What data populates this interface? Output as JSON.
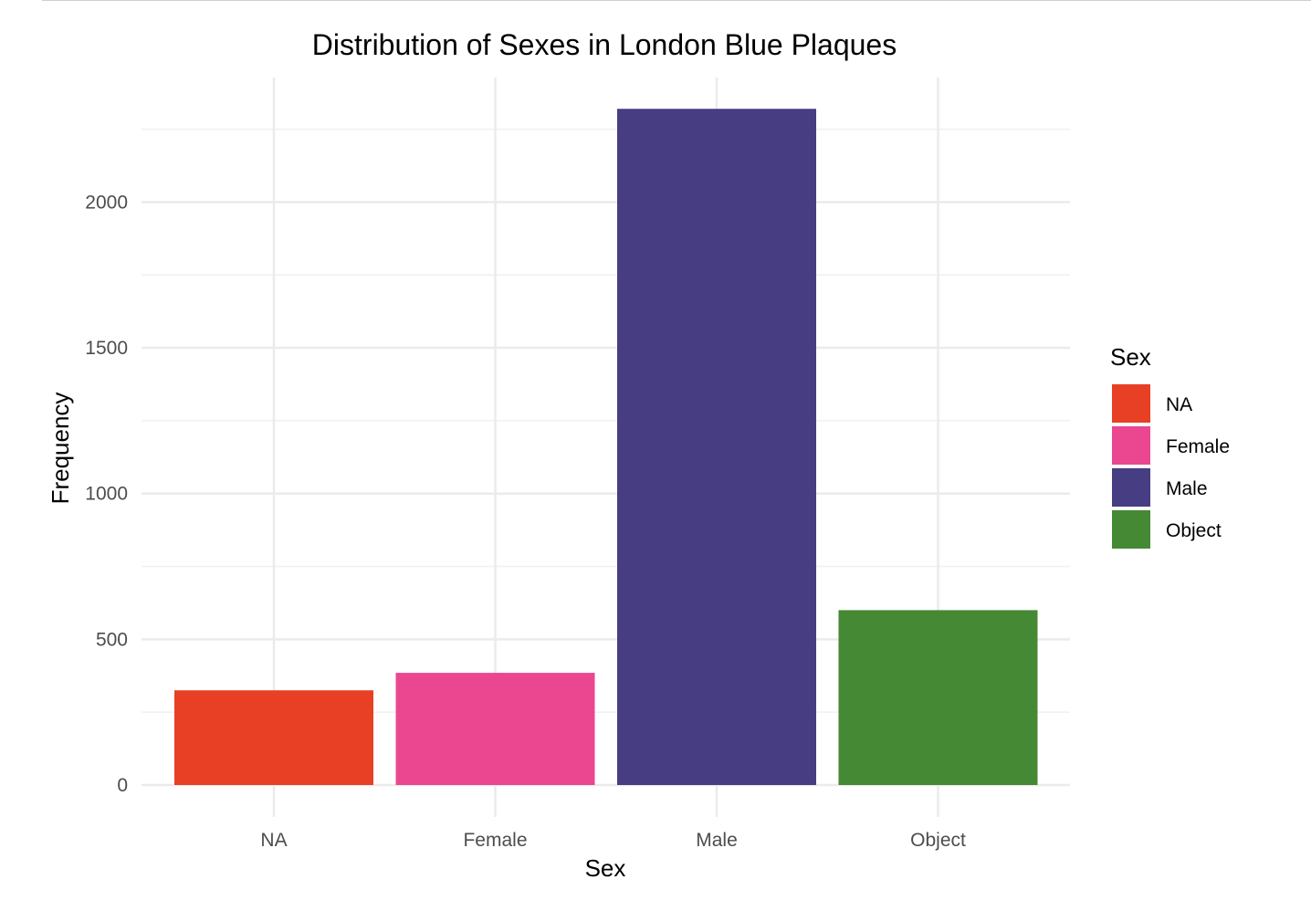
{
  "chart_data": {
    "type": "bar",
    "title": "Distribution of Sexes in London Blue Plaques",
    "xlabel": "Sex",
    "ylabel": "Frequency",
    "categories": [
      "NA",
      "Female",
      "Male",
      "Object"
    ],
    "values": [
      325,
      385,
      2320,
      600
    ],
    "colors": [
      "#E84025",
      "#EB4791",
      "#473D83",
      "#468934"
    ],
    "ylim": [
      0,
      2450
    ],
    "yticks": [
      0,
      500,
      1000,
      1500,
      2000
    ],
    "grid": true,
    "legend": {
      "title": "Sex",
      "placement": "right",
      "entries": [
        "NA",
        "Female",
        "Male",
        "Object"
      ]
    }
  }
}
